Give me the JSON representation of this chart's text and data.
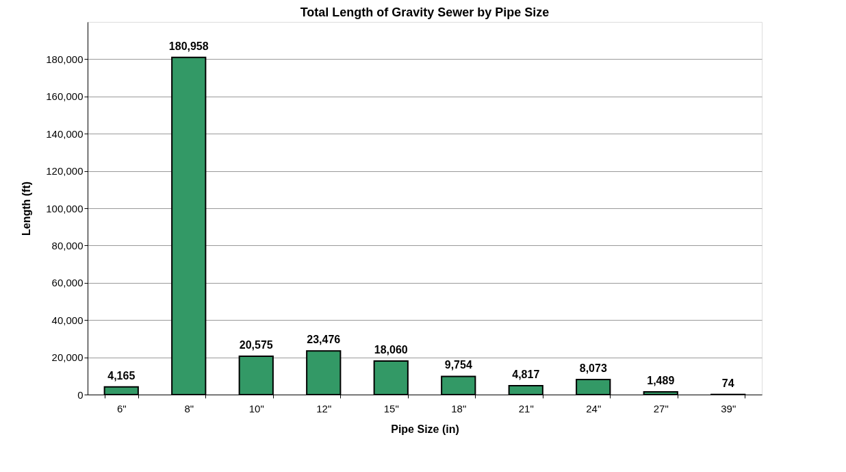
{
  "chart_data": {
    "type": "bar",
    "title": "Total Length of Gravity Sewer by Pipe Size",
    "xlabel": "Pipe Size (in)",
    "ylabel": "Length (ft)",
    "categories": [
      "6\"",
      "8\"",
      "10\"",
      "12\"",
      "15\"",
      "18\"",
      "21\"",
      "24\"",
      "27\"",
      "39\""
    ],
    "values": [
      4165,
      180958,
      20575,
      23476,
      18060,
      9754,
      4817,
      8073,
      1489,
      74
    ],
    "value_labels": [
      "4,165",
      "180,958",
      "20,575",
      "23,476",
      "18,060",
      "9,754",
      "4,817",
      "8,073",
      "1,489",
      "74"
    ],
    "color": "#339966",
    "ylim": [
      0,
      200000
    ],
    "yticks": [
      0,
      {
        "value": 20000,
        "label": "20,000"
      },
      {
        "value": 40000,
        "label": "40,000"
      },
      {
        "value": 60000,
        "label": "60,000"
      },
      {
        "value": 80000,
        "label": "80,000"
      },
      {
        "value": 100000,
        "label": "100,000"
      },
      {
        "value": 120000,
        "label": "120,000"
      },
      {
        "value": 140000,
        "label": "140,000"
      },
      {
        "value": 160000,
        "label": "160,000"
      },
      {
        "value": 180000,
        "label": "180,000"
      }
    ],
    "grid": "y"
  }
}
